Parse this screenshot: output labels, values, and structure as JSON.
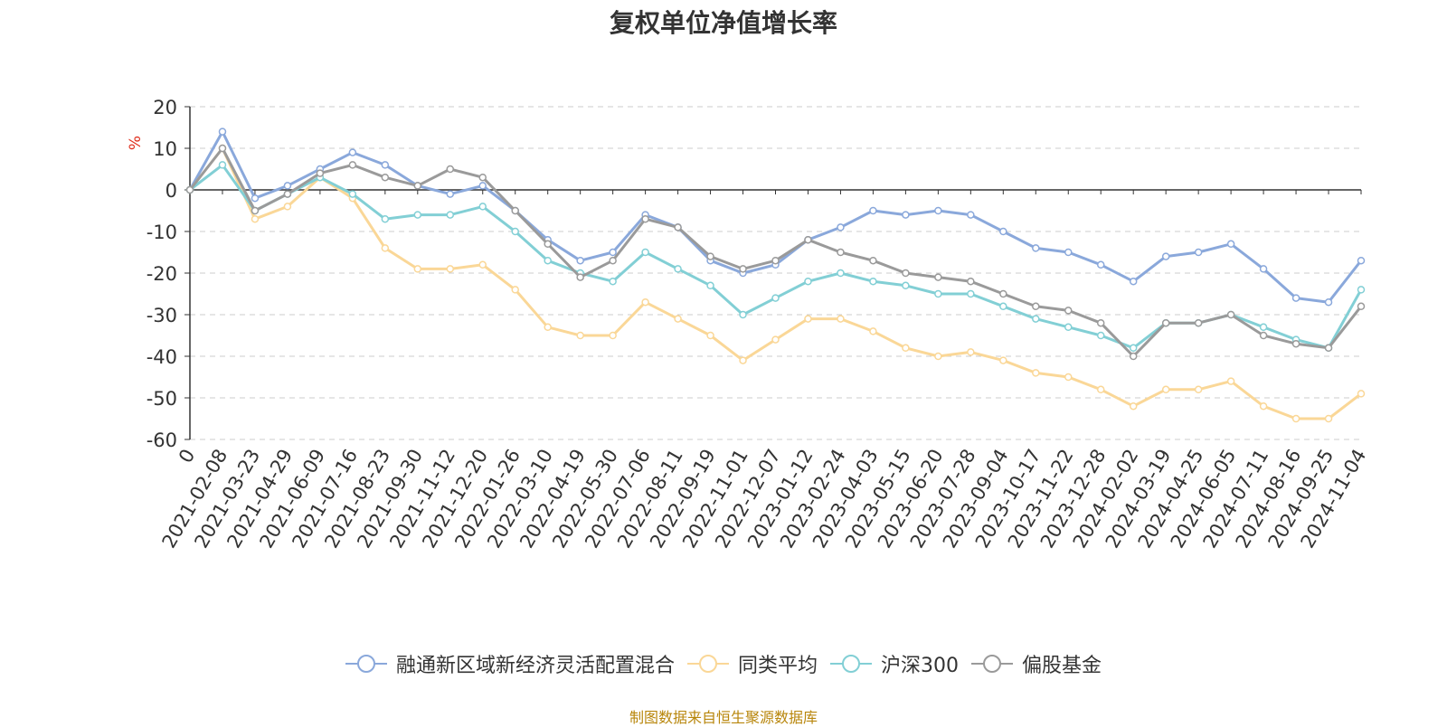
{
  "chart_data": {
    "type": "line",
    "title": "复权单位净值增长率",
    "ylabel": "%",
    "ylim": [
      -60,
      20
    ],
    "yticks": [
      20,
      10,
      0,
      -10,
      -20,
      -30,
      -40,
      -50,
      -60
    ],
    "categories": [
      "0",
      "2021-02-08",
      "2021-03-23",
      "2021-04-29",
      "2021-06-09",
      "2021-07-16",
      "2021-08-23",
      "2021-09-30",
      "2021-11-12",
      "2021-12-20",
      "2022-01-26",
      "2022-03-10",
      "2022-04-19",
      "2022-05-30",
      "2022-07-06",
      "2022-08-11",
      "2022-09-19",
      "2022-11-01",
      "2022-12-07",
      "2023-01-12",
      "2023-02-24",
      "2023-04-03",
      "2023-05-15",
      "2023-06-20",
      "2023-07-28",
      "2023-09-04",
      "2023-10-17",
      "2023-11-22",
      "2023-12-28",
      "2024-02-02",
      "2024-03-19",
      "2024-04-25",
      "2024-06-05",
      "2024-07-11",
      "2024-08-16",
      "2024-09-25",
      "2024-11-04"
    ],
    "series": [
      {
        "name": "融通新区域新经济灵活配置混合",
        "color": "#8aa8db",
        "values": [
          0,
          14,
          -2,
          1,
          5,
          9,
          6,
          1,
          -1,
          1,
          -5,
          -12,
          -17,
          -15,
          -6,
          -9,
          -17,
          -20,
          -18,
          -12,
          -9,
          -5,
          -6,
          -5,
          -6,
          -10,
          -14,
          -15,
          -18,
          -22,
          -16,
          -15,
          -13,
          -19,
          -26,
          -27,
          -17
        ]
      },
      {
        "name": "同类平均",
        "color": "#fad797",
        "values": [
          0,
          10,
          -7,
          -4,
          3,
          -2,
          -14,
          -19,
          -19,
          -18,
          -24,
          -33,
          -35,
          -35,
          -27,
          -31,
          -35,
          -41,
          -36,
          -31,
          -31,
          -34,
          -38,
          -40,
          -39,
          -41,
          -44,
          -45,
          -48,
          -52,
          -48,
          -48,
          -46,
          -52,
          -55,
          -55,
          -49
        ]
      },
      {
        "name": "沪深300",
        "color": "#82cfd5",
        "values": [
          0,
          6,
          -5,
          -1,
          3,
          -1,
          -7,
          -6,
          -6,
          -4,
          -10,
          -17,
          -20,
          -22,
          -15,
          -19,
          -23,
          -30,
          -26,
          -22,
          -20,
          -22,
          -23,
          -25,
          -25,
          -28,
          -31,
          -33,
          -35,
          -38,
          -32,
          -32,
          -30,
          -33,
          -36,
          -38,
          -24
        ]
      },
      {
        "name": "偏股基金",
        "color": "#9a9a9a",
        "values": [
          0,
          10,
          -5,
          -1,
          4,
          6,
          3,
          1,
          5,
          3,
          -5,
          -13,
          -21,
          -17,
          -7,
          -9,
          -16,
          -19,
          -17,
          -12,
          -15,
          -17,
          -20,
          -21,
          -22,
          -25,
          -28,
          -29,
          -32,
          -40,
          -32,
          -32,
          -30,
          -35,
          -37,
          -38,
          -28
        ]
      }
    ]
  },
  "footer": {
    "source": "制图数据来自恒生聚源数据库"
  }
}
